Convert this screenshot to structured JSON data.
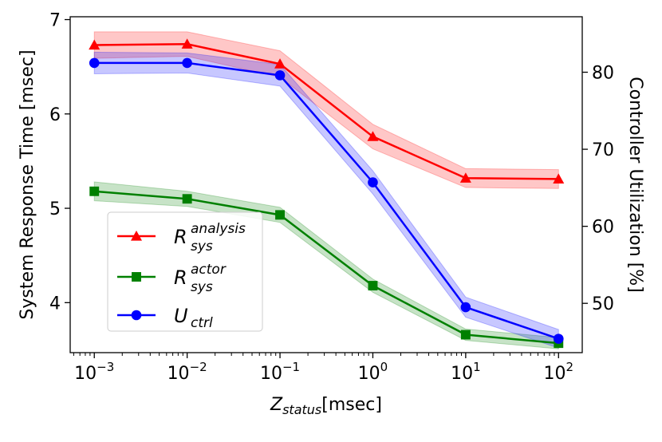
{
  "chart_data": {
    "type": "line",
    "title": "",
    "x_scale": "log",
    "x_label": {
      "main": "Z",
      "sub": "status",
      "rest": "[msec]"
    },
    "y_left_label": "System Response Time [msec]",
    "y_right_label": "Controller Utilization [%]",
    "x_tick_labels": [
      {
        "value": 0.001,
        "base": "10",
        "exp": "−3"
      },
      {
        "value": 0.01,
        "base": "10",
        "exp": "−2"
      },
      {
        "value": 0.1,
        "base": "10",
        "exp": "−1"
      },
      {
        "value": 1,
        "base": "10",
        "exp": "0"
      },
      {
        "value": 10,
        "base": "10",
        "exp": "1"
      },
      {
        "value": 100,
        "base": "10",
        "exp": "2"
      }
    ],
    "x_range": [
      0.00055,
      180
    ],
    "y_left_range": [
      3.47,
      7.03
    ],
    "y_left_ticks": [
      4,
      5,
      6,
      7
    ],
    "y_right_range": [
      43.6,
      87.2
    ],
    "y_right_ticks": [
      50,
      60,
      70,
      80
    ],
    "grid": false,
    "legend_position": "lower-left",
    "x": [
      0.001,
      0.01,
      0.1,
      1,
      10,
      100
    ],
    "series": [
      {
        "name": "R_sys^analysis",
        "legend": {
          "main": "R",
          "sub": "sys",
          "sup": "analysis"
        },
        "axis": "left",
        "color": "#ff0000",
        "marker": "triangle",
        "values": [
          6.73,
          6.74,
          6.53,
          5.76,
          5.32,
          5.31
        ],
        "band": [
          0.14,
          0.13,
          0.14,
          0.13,
          0.1,
          0.1
        ]
      },
      {
        "name": "R_sys^actor",
        "legend": {
          "main": "R",
          "sub": "sys",
          "sup": "actor"
        },
        "axis": "left",
        "color": "#008000",
        "marker": "square",
        "values": [
          5.18,
          5.1,
          4.93,
          4.18,
          3.66,
          3.57
        ],
        "band": [
          0.1,
          0.08,
          0.08,
          0.07,
          0.06,
          0.06
        ]
      },
      {
        "name": "U_ctrl",
        "legend": {
          "main": "U",
          "sub": "ctrl",
          "sup": ""
        },
        "axis": "right",
        "color": "#0000ff",
        "marker": "circle",
        "values": [
          81.2,
          81.2,
          79.6,
          65.7,
          49.5,
          45.4
        ],
        "band": [
          1.4,
          1.3,
          1.4,
          1.5,
          1.3,
          1.2
        ]
      }
    ]
  }
}
